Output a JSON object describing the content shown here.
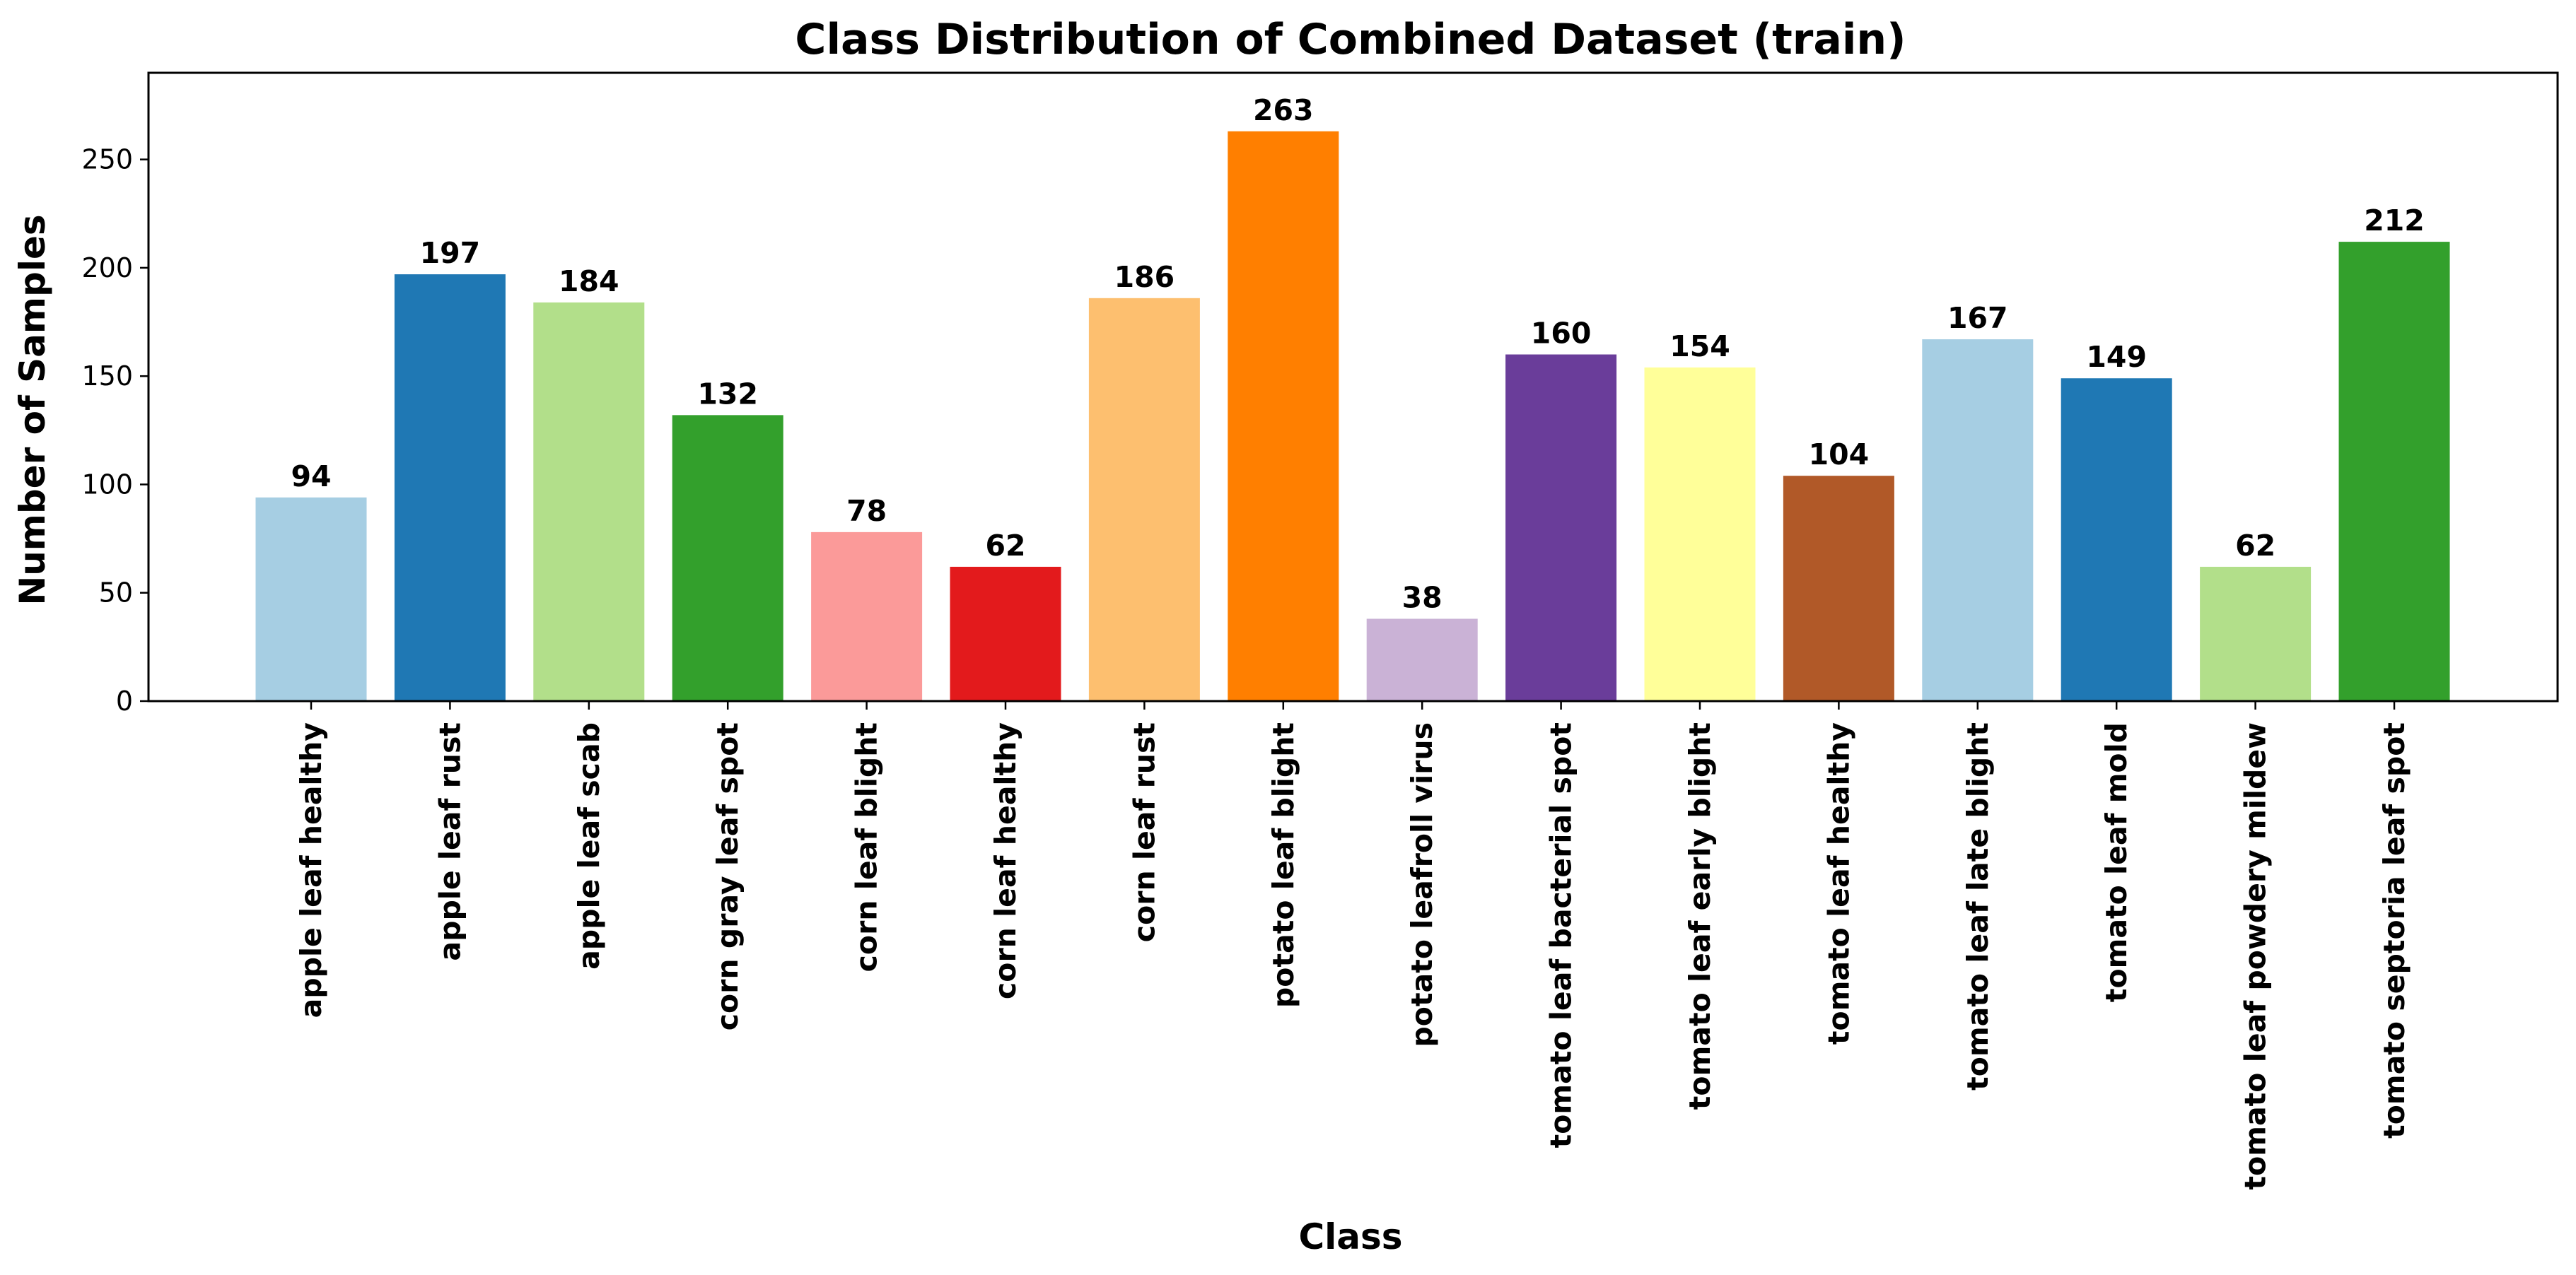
{
  "chart_data": {
    "type": "bar",
    "title": "Class Distribution of Combined Dataset (train)",
    "xlabel": "Class",
    "ylabel": "Number of Samples",
    "ylim": [
      0,
      290
    ],
    "yticks": [
      0,
      50,
      100,
      150,
      200,
      250
    ],
    "grid": false,
    "legend": "none",
    "categories": [
      "apple leaf healthy",
      "apple leaf rust",
      "apple leaf scab",
      "corn gray leaf spot",
      "corn leaf blight",
      "corn leaf healthy",
      "corn leaf rust",
      "potato leaf blight",
      "potato leafroll virus",
      "tomato leaf bacterial spot",
      "tomato leaf early blight",
      "tomato leaf healthy",
      "tomato leaf late blight",
      "tomato leaf mold",
      "tomato leaf powdery mildew",
      "tomato septoria leaf spot"
    ],
    "values": [
      94,
      197,
      184,
      132,
      78,
      62,
      186,
      263,
      38,
      160,
      154,
      104,
      167,
      149,
      62,
      212
    ],
    "colors": [
      "#a6cee3",
      "#1f78b4",
      "#b2df8a",
      "#33a02c",
      "#fb9a99",
      "#e31a1c",
      "#fdbf6f",
      "#ff7f00",
      "#cab2d6",
      "#6a3d9a",
      "#ffff99",
      "#b15928",
      "#a6cee3",
      "#1f78b4",
      "#b2df8a",
      "#33a02c"
    ]
  }
}
